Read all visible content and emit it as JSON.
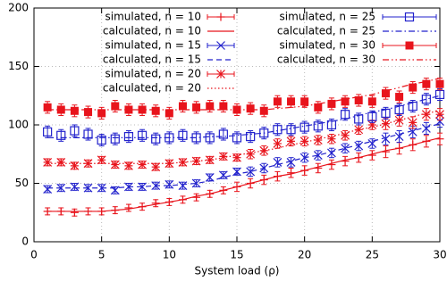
{
  "chart_data": {
    "type": "line",
    "xlabel": "System load (ρ)",
    "x": [
      1,
      2,
      3,
      4,
      5,
      6,
      7,
      8,
      9,
      10,
      11,
      12,
      13,
      14,
      15,
      16,
      17,
      18,
      19,
      20,
      21,
      22,
      23,
      24,
      25,
      26,
      27,
      28,
      29,
      30
    ],
    "xlim": [
      0,
      30
    ],
    "xticks": [
      0,
      5,
      10,
      15,
      20,
      25,
      30
    ],
    "ylim": [
      0,
      200
    ],
    "yticks": [
      0,
      50,
      100,
      150,
      200
    ],
    "grid": true,
    "series": [
      {
        "name": "simulated, n = 10",
        "color": "#e8141c",
        "marker": "plus",
        "values": [
          26,
          26,
          25,
          26,
          26,
          27,
          29,
          30,
          33,
          34,
          36,
          38,
          41,
          44,
          47,
          50,
          53,
          56,
          59,
          61,
          63,
          66,
          69,
          72,
          74,
          77,
          80,
          83,
          86,
          88
        ],
        "errors": [
          3,
          3,
          3,
          3,
          3,
          3,
          3,
          3,
          3,
          3,
          3,
          3,
          3,
          3,
          4,
          4,
          4,
          4,
          4,
          4,
          4,
          4,
          4,
          4,
          4,
          5,
          5,
          5,
          5,
          5
        ]
      },
      {
        "name": "calculated, n = 10",
        "color": "#e8141c",
        "dash": "solid",
        "values": [
          26,
          26,
          26,
          26,
          26,
          27,
          28,
          30,
          32,
          34,
          36,
          39,
          41,
          44,
          47,
          50,
          53,
          56,
          58,
          61,
          64,
          67,
          70,
          72,
          75,
          78,
          80,
          83,
          86,
          89
        ]
      },
      {
        "name": "simulated, n = 15",
        "color": "#2222cc",
        "marker": "x",
        "values": [
          45,
          46,
          47,
          46,
          46,
          44,
          47,
          47,
          48,
          49,
          48,
          50,
          55,
          57,
          60,
          60,
          63,
          68,
          68,
          72,
          74,
          76,
          80,
          82,
          84,
          88,
          90,
          94,
          97,
          103
        ],
        "errors": [
          3,
          3,
          3,
          3,
          3,
          3,
          3,
          3,
          3,
          3,
          3,
          3,
          3,
          3,
          3,
          4,
          4,
          4,
          4,
          4,
          4,
          4,
          4,
          4,
          4,
          5,
          5,
          5,
          5,
          5
        ]
      },
      {
        "name": "calculated, n = 15",
        "color": "#2222cc",
        "dash": "dashed",
        "values": [
          46,
          46,
          46,
          46,
          46,
          46,
          47,
          47,
          48,
          48,
          49,
          50,
          52,
          55,
          58,
          60,
          63,
          66,
          69,
          72,
          74,
          77,
          80,
          83,
          86,
          89,
          92,
          95,
          98,
          101
        ]
      },
      {
        "name": "simulated, n = 20",
        "color": "#e8141c",
        "marker": "asterisk",
        "values": [
          68,
          68,
          65,
          67,
          70,
          66,
          65,
          66,
          64,
          67,
          68,
          69,
          70,
          73,
          72,
          75,
          78,
          84,
          86,
          86,
          87,
          88,
          91,
          96,
          100,
          101,
          104,
          102,
          109,
          109
        ],
        "errors": [
          3,
          3,
          3,
          3,
          3,
          3,
          3,
          3,
          3,
          3,
          3,
          3,
          3,
          3,
          3,
          4,
          4,
          4,
          4,
          4,
          4,
          4,
          4,
          4,
          4,
          5,
          5,
          5,
          5,
          5
        ]
      },
      {
        "name": "calculated, n = 20",
        "color": "#e8141c",
        "dash": "dotted",
        "values": [
          67,
          67,
          67,
          67,
          67,
          67,
          67,
          67,
          67,
          67,
          68,
          69,
          70,
          72,
          74,
          76,
          78,
          80,
          83,
          85,
          88,
          90,
          93,
          96,
          98,
          101,
          104,
          107,
          110,
          112
        ]
      },
      {
        "name": "simulated, n = 25",
        "color": "#2222cc",
        "marker": "open-square",
        "values": [
          94,
          91,
          95,
          92,
          87,
          88,
          90,
          91,
          88,
          89,
          91,
          89,
          89,
          92,
          89,
          90,
          93,
          96,
          96,
          98,
          99,
          100,
          109,
          105,
          107,
          110,
          113,
          116,
          122,
          126
        ],
        "errors": [
          5,
          5,
          5,
          5,
          5,
          5,
          5,
          5,
          5,
          5,
          5,
          5,
          5,
          5,
          5,
          5,
          5,
          5,
          5,
          5,
          5,
          5,
          5,
          5,
          5,
          5,
          5,
          5,
          5,
          5
        ]
      },
      {
        "name": "calculated, n = 25",
        "color": "#2222cc",
        "dash": "dash-dot",
        "values": [
          89,
          89,
          89,
          89,
          89,
          89,
          89,
          89,
          89,
          89,
          89,
          89,
          90,
          90,
          91,
          92,
          93,
          95,
          97,
          99,
          101,
          103,
          105,
          108,
          111,
          113,
          116,
          119,
          122,
          125
        ]
      },
      {
        "name": "simulated, n = 30",
        "color": "#e8141c",
        "marker": "filled-square",
        "values": [
          115,
          113,
          112,
          111,
          110,
          116,
          113,
          113,
          112,
          110,
          116,
          115,
          116,
          116,
          113,
          114,
          112,
          120,
          120,
          120,
          115,
          118,
          120,
          121,
          120,
          127,
          124,
          132,
          135,
          135
        ],
        "errors": [
          5,
          5,
          5,
          5,
          5,
          5,
          5,
          5,
          5,
          5,
          5,
          5,
          5,
          5,
          5,
          5,
          5,
          5,
          5,
          5,
          5,
          5,
          5,
          5,
          5,
          5,
          5,
          5,
          5,
          5
        ]
      },
      {
        "name": "calculated, n = 30",
        "color": "#e8141c",
        "dash": "dash-dot-dot",
        "values": [
          113,
          113,
          113,
          113,
          113,
          113,
          113,
          113,
          113,
          113,
          113,
          113,
          113,
          113,
          113,
          113,
          113,
          114,
          115,
          116,
          118,
          120,
          122,
          124,
          126,
          129,
          132,
          135,
          137,
          140
        ]
      }
    ]
  }
}
